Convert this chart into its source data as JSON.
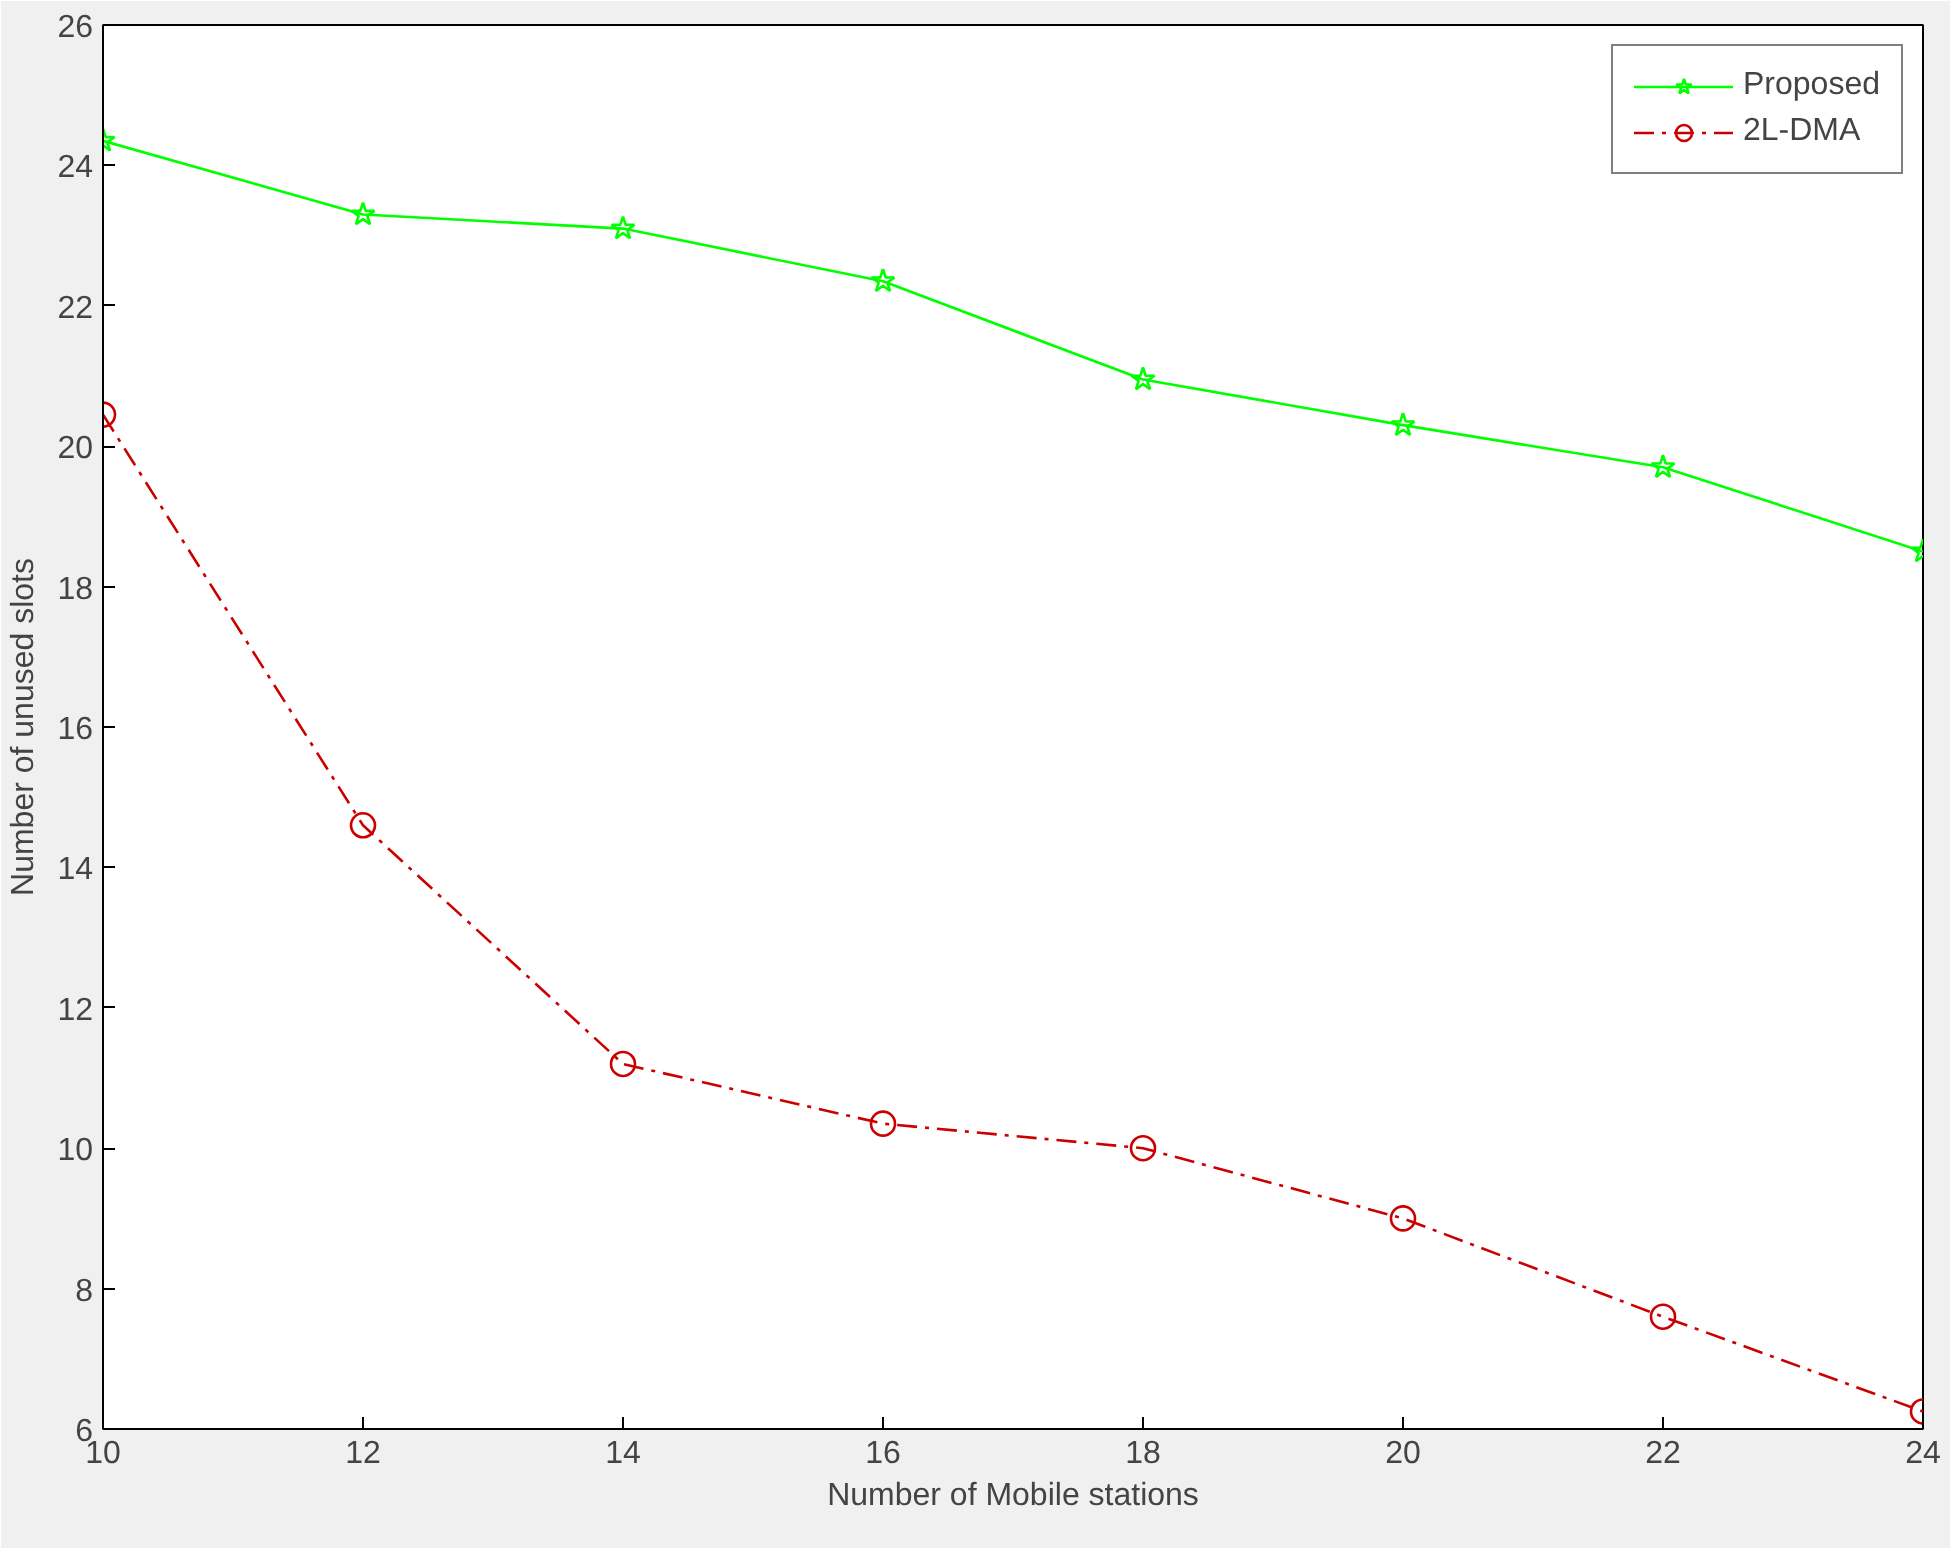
{
  "chart_data": {
    "type": "line",
    "xlabel": "Number of Mobile stations",
    "ylabel": "Number of unused slots",
    "x": [
      10,
      12,
      14,
      16,
      18,
      20,
      22,
      24
    ],
    "series": [
      {
        "name": "Proposed",
        "color": "#00ff00",
        "marker": "star",
        "line_style": "solid",
        "values": [
          24.35,
          23.3,
          23.1,
          22.35,
          20.95,
          20.3,
          19.7,
          18.5
        ]
      },
      {
        "name": "2L-DMA",
        "color": "#cc0000",
        "marker": "circle",
        "line_style": "dashed",
        "values": [
          20.45,
          14.6,
          11.2,
          10.35,
          10.0,
          9.0,
          7.6,
          6.25
        ]
      }
    ],
    "xlim": [
      10,
      24
    ],
    "xticks": [
      10,
      12,
      14,
      16,
      18,
      20,
      22,
      24
    ],
    "ylim": [
      6,
      26
    ],
    "yticks": [
      6,
      8,
      10,
      12,
      14,
      16,
      18,
      20,
      22,
      24,
      26
    ],
    "grid": false,
    "legend": "top right"
  }
}
